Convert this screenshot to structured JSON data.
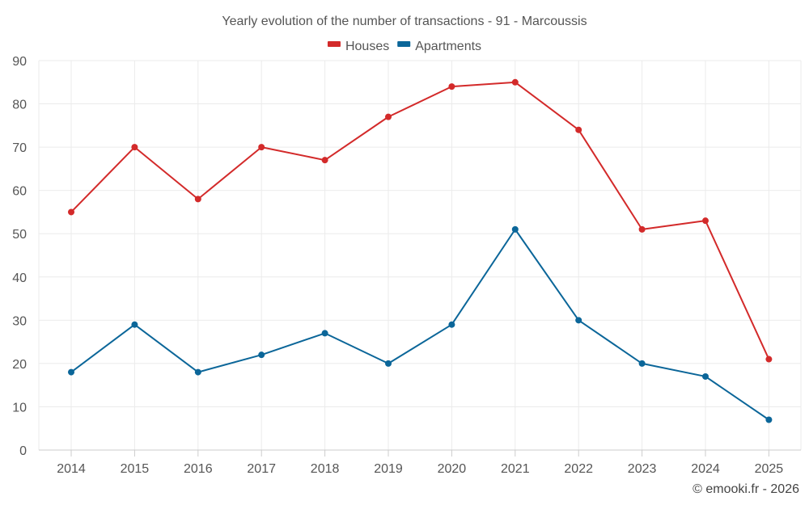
{
  "chart_data": {
    "type": "line",
    "title": "Yearly evolution of the number of transactions - 91 - Marcoussis",
    "categories": [
      "2014",
      "2015",
      "2016",
      "2017",
      "2018",
      "2019",
      "2020",
      "2021",
      "2022",
      "2023",
      "2024",
      "2025"
    ],
    "series": [
      {
        "name": "Houses",
        "color": "#d32a2a",
        "values": [
          55,
          70,
          58,
          70,
          67,
          77,
          84,
          85,
          74,
          51,
          53,
          21
        ]
      },
      {
        "name": "Apartments",
        "color": "#0b6699",
        "values": [
          18,
          29,
          18,
          22,
          27,
          20,
          29,
          51,
          30,
          20,
          17,
          7
        ]
      }
    ],
    "ylim": [
      0,
      90
    ],
    "yticks": [
      0,
      10,
      20,
      30,
      40,
      50,
      60,
      70,
      80,
      90
    ],
    "xlabel": "",
    "ylabel": "",
    "grid": true,
    "legend_position": "top-center"
  },
  "credit": "© emooki.fr - 2026"
}
